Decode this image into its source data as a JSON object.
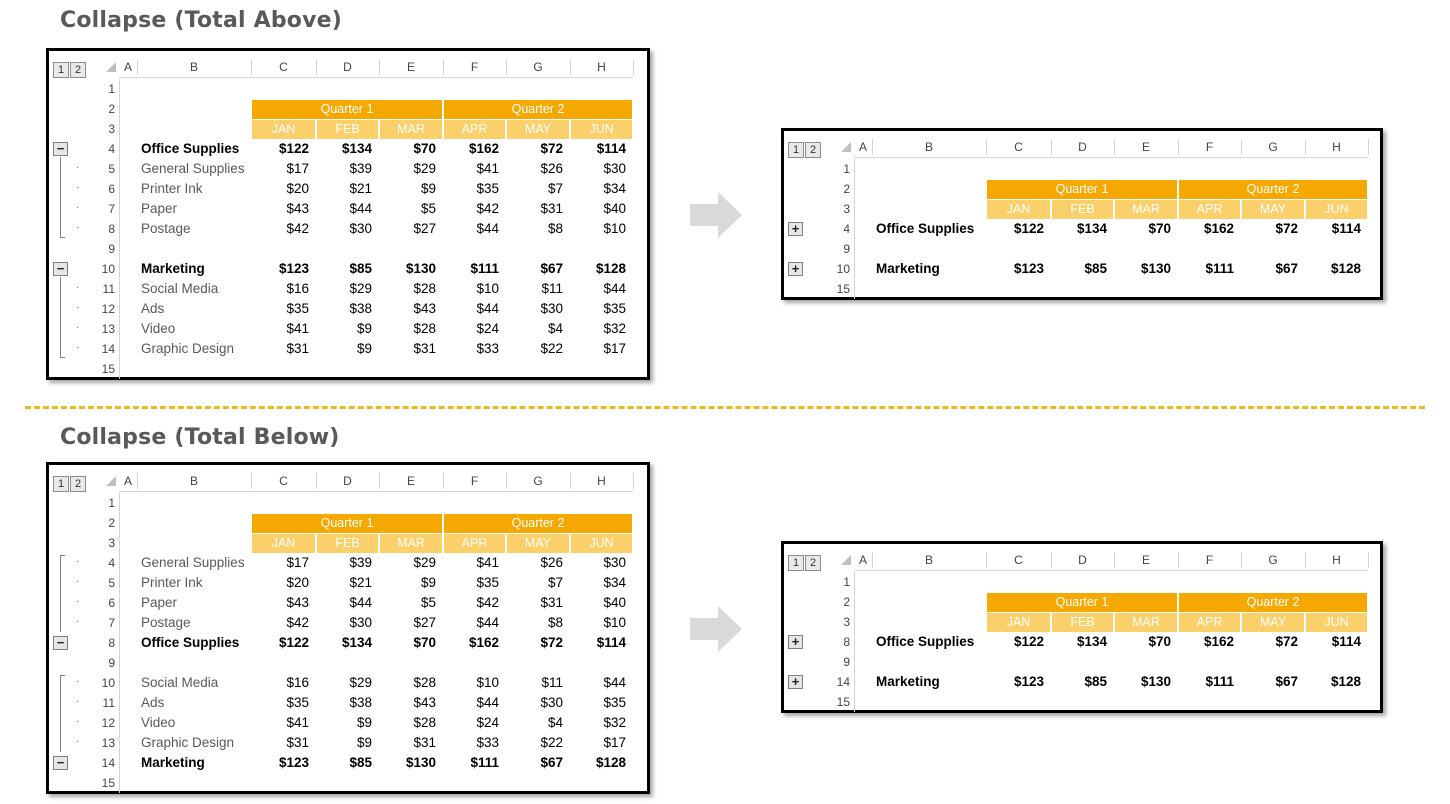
{
  "titles": {
    "above": "Collapse (Total Above)",
    "below": "Collapse (Total Below)"
  },
  "colors": {
    "quarter": "#F5A800",
    "month": "#FBCF6A",
    "divider": "#F0B81A",
    "arrow": "#D9D9D9"
  },
  "outline_levels": [
    "1",
    "2"
  ],
  "columns": [
    "A",
    "B",
    "C",
    "D",
    "E",
    "F",
    "G",
    "H"
  ],
  "quarters": [
    "Quarter 1",
    "Quarter 2"
  ],
  "months": [
    "JAN",
    "FEB",
    "MAR",
    "APR",
    "MAY",
    "JUN"
  ],
  "sheets": [
    {
      "id": "above-expanded",
      "rows": [
        {
          "n": "1",
          "type": "blank"
        },
        {
          "n": "2",
          "type": "quarter"
        },
        {
          "n": "3",
          "type": "month"
        },
        {
          "n": "4",
          "type": "data",
          "bold": true,
          "label": "Office Supplies",
          "values": [
            "$122",
            "$134",
            "$70",
            "$162",
            "$72",
            "$114"
          ],
          "outline": "minus"
        },
        {
          "n": "5",
          "type": "data",
          "label": "General Supplies",
          "values": [
            "$17",
            "$39",
            "$29",
            "$41",
            "$26",
            "$30"
          ],
          "outline": "dot"
        },
        {
          "n": "6",
          "type": "data",
          "label": "Printer Ink",
          "values": [
            "$20",
            "$21",
            "$9",
            "$35",
            "$7",
            "$34"
          ],
          "outline": "dot"
        },
        {
          "n": "7",
          "type": "data",
          "label": "Paper",
          "values": [
            "$43",
            "$44",
            "$5",
            "$42",
            "$31",
            "$40"
          ],
          "outline": "dot"
        },
        {
          "n": "8",
          "type": "data",
          "label": "Postage",
          "values": [
            "$42",
            "$30",
            "$27",
            "$44",
            "$8",
            "$10"
          ],
          "outline": "dot"
        },
        {
          "n": "9",
          "type": "blank"
        },
        {
          "n": "10",
          "type": "data",
          "bold": true,
          "label": "Marketing",
          "values": [
            "$123",
            "$85",
            "$130",
            "$111",
            "$67",
            "$128"
          ],
          "outline": "minus"
        },
        {
          "n": "11",
          "type": "data",
          "label": "Social Media",
          "values": [
            "$16",
            "$29",
            "$28",
            "$10",
            "$11",
            "$44"
          ],
          "outline": "dot"
        },
        {
          "n": "12",
          "type": "data",
          "label": "Ads",
          "values": [
            "$35",
            "$38",
            "$43",
            "$44",
            "$30",
            "$35"
          ],
          "outline": "dot"
        },
        {
          "n": "13",
          "type": "data",
          "label": "Video",
          "values": [
            "$41",
            "$9",
            "$28",
            "$24",
            "$4",
            "$32"
          ],
          "outline": "dot"
        },
        {
          "n": "14",
          "type": "data",
          "label": "Graphic Design",
          "values": [
            "$31",
            "$9",
            "$31",
            "$33",
            "$22",
            "$17"
          ],
          "outline": "dot"
        },
        {
          "n": "15",
          "type": "blank"
        }
      ]
    },
    {
      "id": "above-collapsed",
      "rows": [
        {
          "n": "1",
          "type": "blank"
        },
        {
          "n": "2",
          "type": "quarter"
        },
        {
          "n": "3",
          "type": "month"
        },
        {
          "n": "4",
          "type": "data",
          "bold": true,
          "label": "Office Supplies",
          "values": [
            "$122",
            "$134",
            "$70",
            "$162",
            "$72",
            "$114"
          ],
          "outline": "plus"
        },
        {
          "n": "9",
          "type": "blank"
        },
        {
          "n": "10",
          "type": "data",
          "bold": true,
          "label": "Marketing",
          "values": [
            "$123",
            "$85",
            "$130",
            "$111",
            "$67",
            "$128"
          ],
          "outline": "plus"
        },
        {
          "n": "15",
          "type": "blank"
        }
      ]
    },
    {
      "id": "below-expanded",
      "rows": [
        {
          "n": "1",
          "type": "blank"
        },
        {
          "n": "2",
          "type": "quarter"
        },
        {
          "n": "3",
          "type": "month"
        },
        {
          "n": "4",
          "type": "data",
          "label": "General Supplies",
          "values": [
            "$17",
            "$39",
            "$29",
            "$41",
            "$26",
            "$30"
          ],
          "outline": "dot"
        },
        {
          "n": "5",
          "type": "data",
          "label": "Printer Ink",
          "values": [
            "$20",
            "$21",
            "$9",
            "$35",
            "$7",
            "$34"
          ],
          "outline": "dot"
        },
        {
          "n": "6",
          "type": "data",
          "label": "Paper",
          "values": [
            "$43",
            "$44",
            "$5",
            "$42",
            "$31",
            "$40"
          ],
          "outline": "dot"
        },
        {
          "n": "7",
          "type": "data",
          "label": "Postage",
          "values": [
            "$42",
            "$30",
            "$27",
            "$44",
            "$8",
            "$10"
          ],
          "outline": "dot"
        },
        {
          "n": "8",
          "type": "data",
          "bold": true,
          "label": "Office Supplies",
          "values": [
            "$122",
            "$134",
            "$70",
            "$162",
            "$72",
            "$114"
          ],
          "outline": "minus"
        },
        {
          "n": "9",
          "type": "blank"
        },
        {
          "n": "10",
          "type": "data",
          "label": "Social Media",
          "values": [
            "$16",
            "$29",
            "$28",
            "$10",
            "$11",
            "$44"
          ],
          "outline": "dot"
        },
        {
          "n": "11",
          "type": "data",
          "label": "Ads",
          "values": [
            "$35",
            "$38",
            "$43",
            "$44",
            "$30",
            "$35"
          ],
          "outline": "dot"
        },
        {
          "n": "12",
          "type": "data",
          "label": "Video",
          "values": [
            "$41",
            "$9",
            "$28",
            "$24",
            "$4",
            "$32"
          ],
          "outline": "dot"
        },
        {
          "n": "13",
          "type": "data",
          "label": "Graphic Design",
          "values": [
            "$31",
            "$9",
            "$31",
            "$33",
            "$22",
            "$17"
          ],
          "outline": "dot"
        },
        {
          "n": "14",
          "type": "data",
          "bold": true,
          "label": "Marketing",
          "values": [
            "$123",
            "$85",
            "$130",
            "$111",
            "$67",
            "$128"
          ],
          "outline": "minus"
        },
        {
          "n": "15",
          "type": "blank"
        }
      ]
    },
    {
      "id": "below-collapsed",
      "rows": [
        {
          "n": "1",
          "type": "blank"
        },
        {
          "n": "2",
          "type": "quarter"
        },
        {
          "n": "3",
          "type": "month"
        },
        {
          "n": "8",
          "type": "data",
          "bold": true,
          "label": "Office Supplies",
          "values": [
            "$122",
            "$134",
            "$70",
            "$162",
            "$72",
            "$114"
          ],
          "outline": "plus"
        },
        {
          "n": "9",
          "type": "blank"
        },
        {
          "n": "14",
          "type": "data",
          "bold": true,
          "label": "Marketing",
          "values": [
            "$123",
            "$85",
            "$130",
            "$111",
            "$67",
            "$128"
          ],
          "outline": "plus"
        },
        {
          "n": "15",
          "type": "blank"
        }
      ]
    }
  ]
}
